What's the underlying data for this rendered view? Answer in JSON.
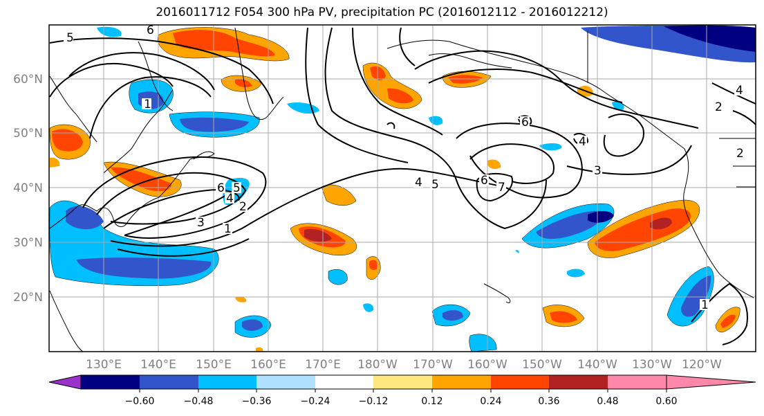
{
  "title": "2016011712 F054 300 hPa PV, precipitation PC (2016012112 - 2016012212)",
  "map": {
    "lon_ticks": [
      "130°E",
      "140°E",
      "150°E",
      "160°E",
      "170°E",
      "180°W",
      "170°W",
      "160°W",
      "150°W",
      "140°W",
      "130°W",
      "120°W"
    ],
    "lat_ticks": [
      "60°N",
      "50°N",
      "40°N",
      "30°N",
      "20°N"
    ],
    "contour_labels": [
      "5",
      "6",
      "1",
      "6",
      "5",
      "4",
      "2",
      "3",
      "1",
      "4",
      "5",
      "6",
      "7",
      "6",
      "4",
      "3",
      "2",
      "4",
      "2",
      "1"
    ]
  },
  "colorbar": {
    "labels": [
      "−0.60",
      "−0.48",
      "−0.36",
      "−0.24",
      "−0.12",
      "0.12",
      "0.24",
      "0.36",
      "0.48",
      "0.60"
    ],
    "colors": [
      "#9933cc",
      "#000080",
      "#3355cc",
      "#00bfff",
      "#b0e2ff",
      "#ffffff",
      "#ffe780",
      "#ffa500",
      "#ff4500",
      "#b22222",
      "#ff88aa"
    ]
  }
}
